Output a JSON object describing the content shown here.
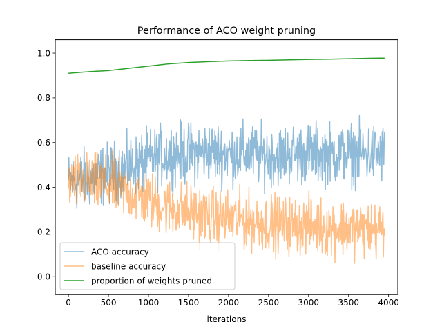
{
  "chart_data": {
    "type": "line",
    "title": "Performance of ACO weight pruning",
    "xlabel": "iterations",
    "ylabel": "",
    "xlim": [
      -165,
      4115
    ],
    "ylim": [
      -0.08,
      1.06
    ],
    "xticks": [
      0,
      500,
      1000,
      1500,
      2000,
      2500,
      3000,
      3500,
      4000
    ],
    "yticks": [
      0.0,
      0.2,
      0.4,
      0.6,
      0.8,
      1.0
    ],
    "xtick_labels": [
      "0",
      "500",
      "1000",
      "1500",
      "2000",
      "2500",
      "3000",
      "3500",
      "4000"
    ],
    "ytick_labels": [
      "0.0",
      "0.2",
      "0.4",
      "0.6",
      "0.8",
      "1.0"
    ],
    "grid": false,
    "legend_position": "lower-left",
    "series": [
      {
        "name": "ACO accuracy",
        "color": "#1f77b4",
        "alpha": 0.5,
        "x": [
          0,
          250,
          500,
          750,
          1000,
          1250,
          1500,
          1750,
          2000,
          2250,
          2500,
          2750,
          3000,
          3250,
          3500,
          3750,
          3950
        ],
        "y": [
          0.42,
          0.44,
          0.46,
          0.49,
          0.52,
          0.55,
          0.55,
          0.56,
          0.55,
          0.55,
          0.54,
          0.55,
          0.55,
          0.55,
          0.55,
          0.55,
          0.55
        ],
        "noise": 0.09,
        "range": [
          0.19,
          0.81
        ]
      },
      {
        "name": "baseline accuracy",
        "color": "#ff7f0e",
        "alpha": 0.5,
        "x": [
          0,
          250,
          500,
          750,
          1000,
          1250,
          1500,
          1750,
          2000,
          2250,
          2500,
          2750,
          3000,
          3250,
          3500,
          3750,
          3950
        ],
        "y": [
          0.42,
          0.42,
          0.41,
          0.38,
          0.34,
          0.31,
          0.29,
          0.27,
          0.26,
          0.25,
          0.24,
          0.23,
          0.23,
          0.22,
          0.22,
          0.21,
          0.21
        ],
        "noise": 0.085,
        "range": [
          0.0,
          0.62
        ]
      },
      {
        "name": "proportion of weights pruned",
        "color": "#2ca02c",
        "alpha": 1,
        "x": [
          0,
          250,
          500,
          750,
          1000,
          1250,
          1500,
          1750,
          2000,
          2250,
          2500,
          2750,
          3000,
          3250,
          3500,
          3750,
          3950
        ],
        "y": [
          0.91,
          0.917,
          0.922,
          0.932,
          0.942,
          0.952,
          0.958,
          0.962,
          0.965,
          0.967,
          0.968,
          0.97,
          0.972,
          0.973,
          0.975,
          0.977,
          0.978
        ],
        "noise": 0.0,
        "range": [
          0.9,
          0.98
        ]
      }
    ]
  }
}
